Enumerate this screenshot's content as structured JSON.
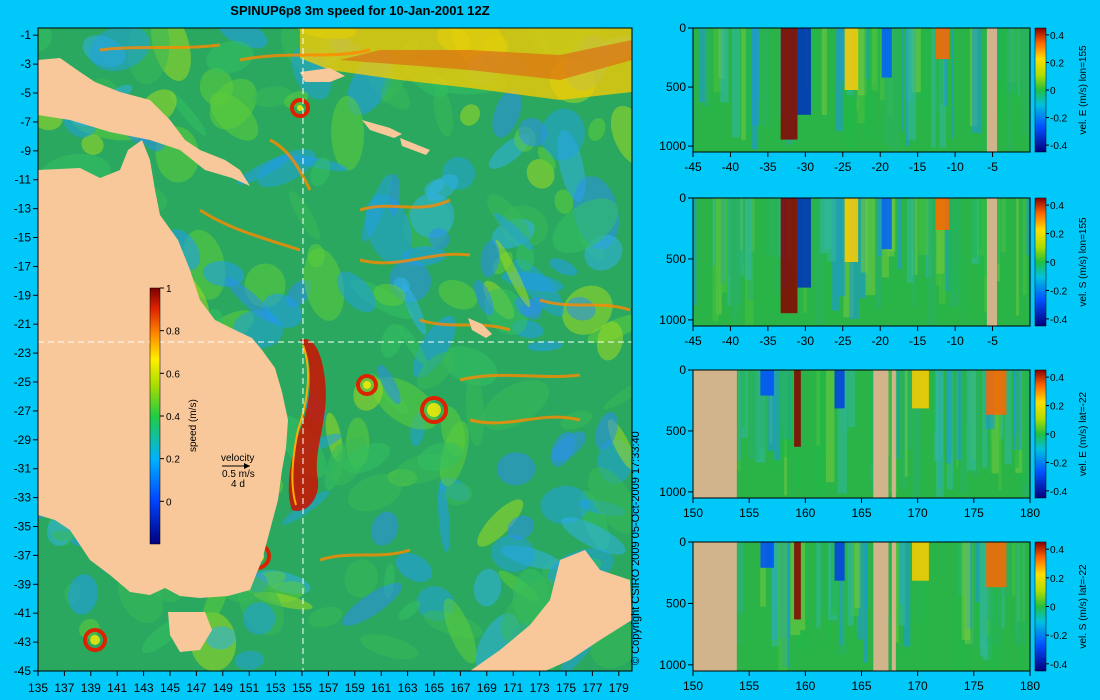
{
  "title": "SPINUP6p8 3m speed for 10-Jan-2001 12Z",
  "copyright": "© Copyright CSIRO 2009   05-Oct-2009 17:33:40",
  "colors": {
    "background": "#00c8f8",
    "land": "#f9c89a",
    "section_land": "#d2b48c",
    "crosshair": "#ffffff"
  },
  "chart_data": [
    {
      "type": "heatmap",
      "title": "SPINUP6p8 3m speed for 10-Jan-2001 12Z",
      "x_ticks": [
        "135",
        "137",
        "139",
        "141",
        "143",
        "145",
        "147",
        "149",
        "151",
        "153",
        "155",
        "157",
        "159",
        "161",
        "163",
        "165",
        "167",
        "169",
        "171",
        "173",
        "175",
        "177",
        "179"
      ],
      "y_ticks": [
        "-1",
        "-3",
        "-5",
        "-7",
        "-9",
        "-11",
        "-13",
        "-15",
        "-17",
        "-19",
        "-21",
        "-23",
        "-25",
        "-27",
        "-29",
        "-31",
        "-33",
        "-35",
        "-37",
        "-39",
        "-41",
        "-43",
        "-45"
      ],
      "xlim": [
        135,
        180
      ],
      "ylim": [
        -45,
        -0.5
      ],
      "crosshair": {
        "lon": 155,
        "lat": -22
      },
      "colorbar": {
        "label": "speed (m/s)",
        "ticks": [
          "1",
          "0.8",
          "0.6",
          "0.4",
          "0.2",
          "0"
        ],
        "range": [
          -0.2,
          1
        ]
      },
      "velocity_key": {
        "label": "velocity",
        "speed": "0.5 m/s",
        "duration": "4 d"
      }
    },
    {
      "type": "heatmap",
      "ylabel": "vel. E (m/s) lon=155",
      "x_ticks": [
        "-45",
        "-40",
        "-35",
        "-30",
        "-25",
        "-20",
        "-15",
        "-10",
        "-5"
      ],
      "y_ticks": [
        "0",
        "500",
        "1000"
      ],
      "xlim": [
        -45,
        0
      ],
      "ylim": [
        1050,
        0
      ],
      "colorbar_ticks": [
        "0.4",
        "0.2",
        "0",
        "-0.2",
        "-0.4"
      ],
      "colorbar_range": [
        -0.45,
        0.45
      ]
    },
    {
      "type": "heatmap",
      "ylabel": "vel. S (m/s) lon=155",
      "x_ticks": [
        "-45",
        "-40",
        "-35",
        "-30",
        "-25",
        "-20",
        "-15",
        "-10",
        "-5"
      ],
      "y_ticks": [
        "0",
        "500",
        "1000"
      ],
      "xlim": [
        -45,
        0
      ],
      "ylim": [
        1050,
        0
      ],
      "colorbar_ticks": [
        "0.4",
        "0.2",
        "0",
        "-0.2",
        "-0.4"
      ],
      "colorbar_range": [
        -0.45,
        0.45
      ]
    },
    {
      "type": "heatmap",
      "ylabel": "vel. E (m/s) lat=-22",
      "x_ticks": [
        "150",
        "155",
        "160",
        "165",
        "170",
        "175",
        "180"
      ],
      "y_ticks": [
        "0",
        "500",
        "1000"
      ],
      "xlim": [
        150,
        180
      ],
      "ylim": [
        1050,
        0
      ],
      "colorbar_ticks": [
        "0.4",
        "0.2",
        "0",
        "-0.2",
        "-0.4"
      ],
      "colorbar_range": [
        -0.45,
        0.45
      ]
    },
    {
      "type": "heatmap",
      "ylabel": "vel. S (m/s) lat=-22",
      "x_ticks": [
        "150",
        "155",
        "160",
        "165",
        "170",
        "175",
        "180"
      ],
      "y_ticks": [
        "0",
        "500",
        "1000"
      ],
      "xlim": [
        150,
        180
      ],
      "ylim": [
        1050,
        0
      ],
      "colorbar_ticks": [
        "0.4",
        "0.2",
        "0",
        "-0.2",
        "-0.4"
      ],
      "colorbar_range": [
        -0.45,
        0.45
      ]
    }
  ]
}
